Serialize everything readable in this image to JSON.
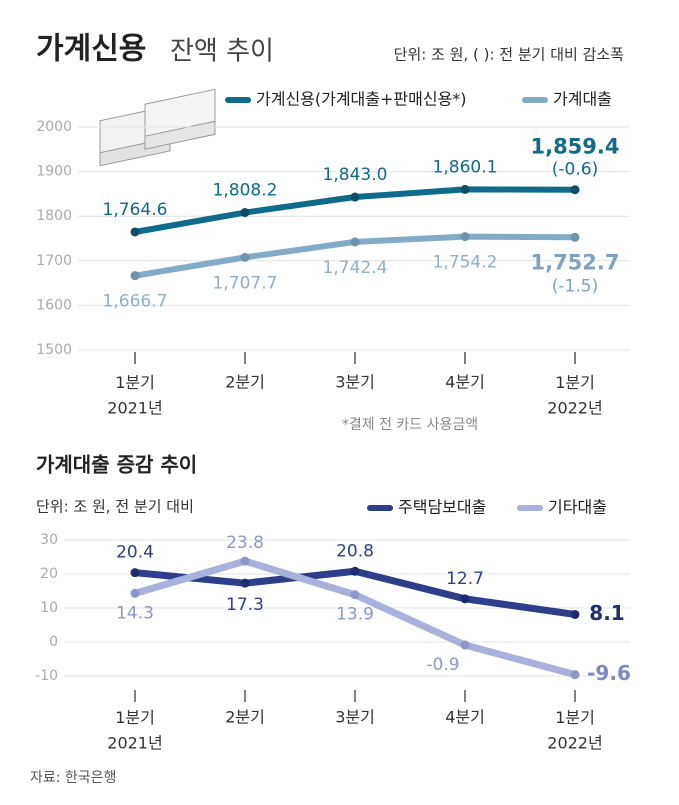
{
  "chart_data": [
    {
      "type": "line",
      "title": "가계신용",
      "subtitle": "잔액 추이",
      "unit": "단위: 조 원, (  ): 전 분기 대비 감소폭",
      "categories": [
        "1분기\n2021년",
        "2분기",
        "3분기",
        "4분기",
        "1분기\n2022년"
      ],
      "series": [
        {
          "name": "가계신용(가계대출+판매신용*)",
          "color": "#0f6b8a",
          "values": [
            1764.6,
            1808.2,
            1843.0,
            1860.1,
            1859.4
          ],
          "value_labels": [
            "1,764.6",
            "1,808.2",
            "1,843.0",
            "1,860.1",
            "1,859.4"
          ]
        },
        {
          "name": "가계대출",
          "color": "#84abc6",
          "values": [
            1666.7,
            1707.7,
            1742.4,
            1754.2,
            1752.7
          ],
          "value_labels": [
            "1,666.7",
            "1,707.7",
            "1,742.4",
            "1,754.2",
            "1,752.7"
          ]
        }
      ],
      "annotations": [
        "(-0.6)",
        "(-1.5)"
      ],
      "footnote": "*결제 전 카드 사용금액",
      "ylim": [
        1500,
        2000
      ],
      "yticks": [
        1500,
        1600,
        1700,
        1800,
        1900,
        2000
      ],
      "grid": true
    },
    {
      "type": "line",
      "title": "가계대출 증감 추이",
      "unit": "단위: 조 원, 전 분기 대비",
      "categories": [
        "1분기\n2021년",
        "2분기",
        "3분기",
        "4분기",
        "1분기\n2022년"
      ],
      "series": [
        {
          "name": "주택담보대출",
          "color": "#2e3e8a",
          "values": [
            20.4,
            17.3,
            20.8,
            12.7,
            8.1
          ]
        },
        {
          "name": "기타대출",
          "color": "#a8b1dc",
          "values": [
            14.3,
            23.8,
            13.9,
            -0.9,
            -9.6
          ]
        }
      ],
      "source": "자료: 한국은행",
      "ylim": [
        -10,
        30
      ],
      "yticks": [
        -10,
        0,
        10,
        20,
        30
      ],
      "grid": true
    }
  ]
}
